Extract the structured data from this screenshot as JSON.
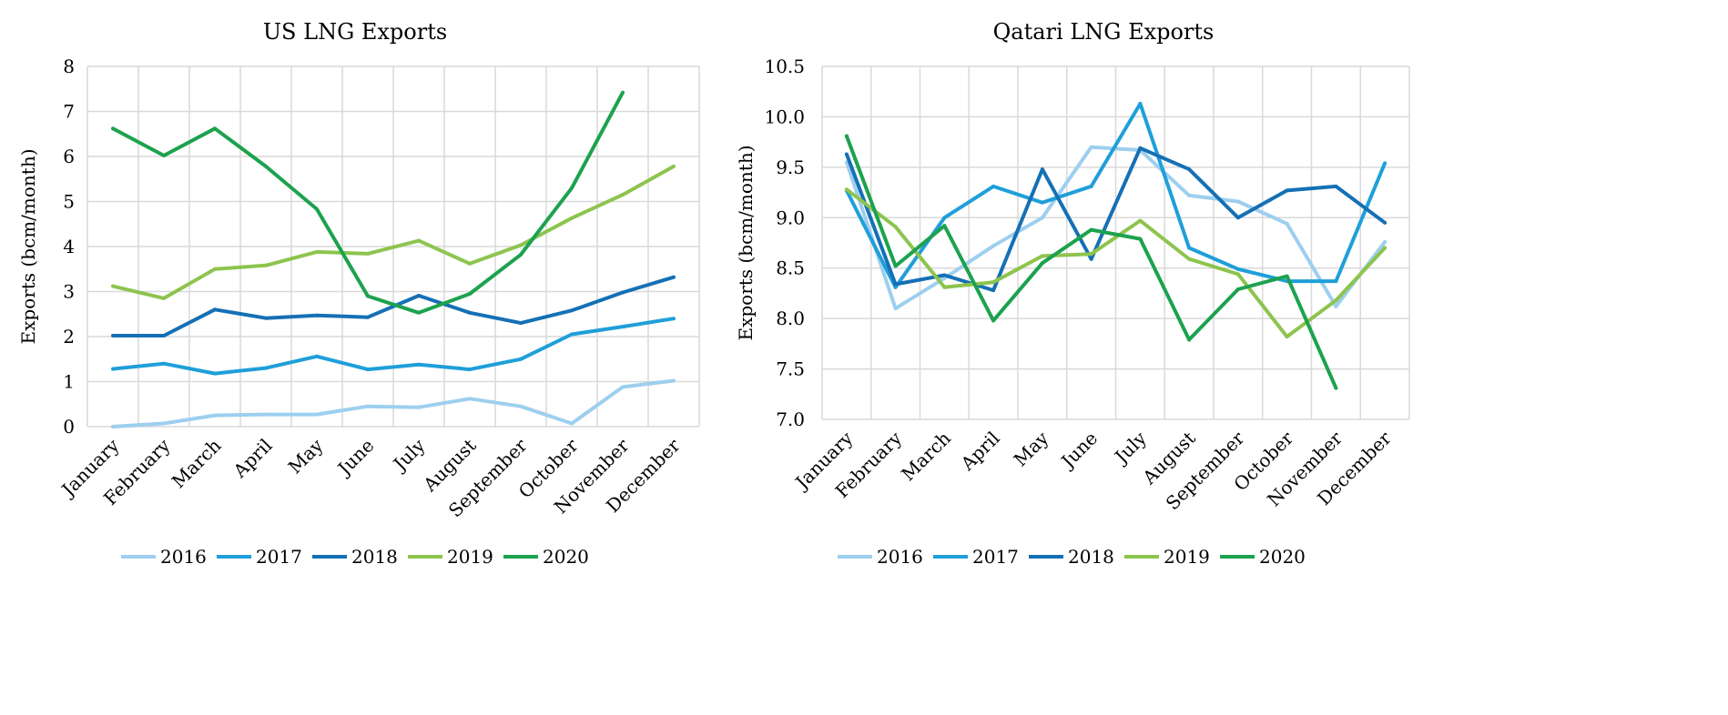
{
  "chart_data": [
    {
      "type": "line",
      "title": "US LNG Exports",
      "ylabel": "Exports (bcm/month)",
      "xlabel": "",
      "ylim": [
        0,
        8
      ],
      "yticks": [
        "0",
        "1",
        "2",
        "3",
        "4",
        "5",
        "6",
        "7",
        "8"
      ],
      "ytick_values": [
        0,
        1,
        2,
        3,
        4,
        5,
        6,
        7,
        8
      ],
      "grid": true,
      "legend": "bottom",
      "categories": [
        "January",
        "February",
        "March",
        "April",
        "May",
        "June",
        "July",
        "August",
        "September",
        "October",
        "November",
        "December"
      ],
      "series": [
        {
          "name": "2016",
          "color": "#9DCFEF",
          "values": [
            0.0,
            0.07,
            0.25,
            0.27,
            0.27,
            0.45,
            0.43,
            0.62,
            0.45,
            0.07,
            0.88,
            1.02
          ]
        },
        {
          "name": "2017",
          "color": "#1F9FD9",
          "values": [
            1.28,
            1.4,
            1.18,
            1.3,
            1.56,
            1.27,
            1.38,
            1.27,
            1.5,
            2.05,
            2.22,
            2.4
          ]
        },
        {
          "name": "2018",
          "color": "#1570B5",
          "values": [
            2.02,
            2.02,
            2.6,
            2.41,
            2.47,
            2.43,
            2.91,
            2.53,
            2.3,
            2.58,
            2.98,
            3.32
          ]
        },
        {
          "name": "2019",
          "color": "#8DC44E",
          "values": [
            3.12,
            2.85,
            3.5,
            3.58,
            3.88,
            3.84,
            4.13,
            3.62,
            4.03,
            4.63,
            5.15,
            5.78
          ]
        },
        {
          "name": "2020",
          "color": "#1CA24E",
          "values": [
            6.62,
            6.02,
            6.62,
            5.78,
            4.83,
            2.9,
            2.53,
            2.95,
            3.82,
            5.3,
            7.42,
            null
          ]
        }
      ]
    },
    {
      "type": "line",
      "title": "Qatari LNG Exports",
      "ylabel": "Exports (bcm/month)",
      "xlabel": "",
      "ylim": [
        7.0,
        10.5
      ],
      "yticks": [
        "7.0",
        "7.5",
        "8.0",
        "8.5",
        "9.0",
        "9.5",
        "10.0",
        "10.5"
      ],
      "ytick_values": [
        7.0,
        7.5,
        8.0,
        8.5,
        9.0,
        9.5,
        10.0,
        10.5
      ],
      "grid": true,
      "legend": "bottom",
      "categories": [
        "January",
        "February",
        "March",
        "April",
        "May",
        "June",
        "July",
        "August",
        "September",
        "October",
        "November",
        "December"
      ],
      "series": [
        {
          "name": "2016",
          "color": "#9DCFEF",
          "values": [
            9.55,
            8.1,
            8.4,
            8.72,
            9.0,
            9.7,
            9.67,
            9.22,
            9.16,
            8.94,
            8.12,
            8.76
          ]
        },
        {
          "name": "2017",
          "color": "#1F9FD9",
          "values": [
            9.27,
            8.31,
            9.0,
            9.31,
            9.15,
            9.31,
            10.13,
            8.7,
            8.49,
            8.37,
            8.37,
            9.54
          ]
        },
        {
          "name": "2018",
          "color": "#1570B5",
          "values": [
            9.63,
            8.34,
            8.43,
            8.28,
            9.48,
            8.59,
            9.69,
            9.48,
            9.0,
            9.27,
            9.31,
            8.95
          ]
        },
        {
          "name": "2019",
          "color": "#8DC44E",
          "values": [
            9.28,
            8.91,
            8.31,
            8.36,
            8.62,
            8.64,
            8.97,
            8.59,
            8.44,
            7.82,
            8.18,
            8.7
          ]
        },
        {
          "name": "2020",
          "color": "#1CA24E",
          "values": [
            9.81,
            8.52,
            8.92,
            7.98,
            8.55,
            8.88,
            8.79,
            7.79,
            8.29,
            8.42,
            7.31,
            null
          ]
        }
      ]
    }
  ]
}
